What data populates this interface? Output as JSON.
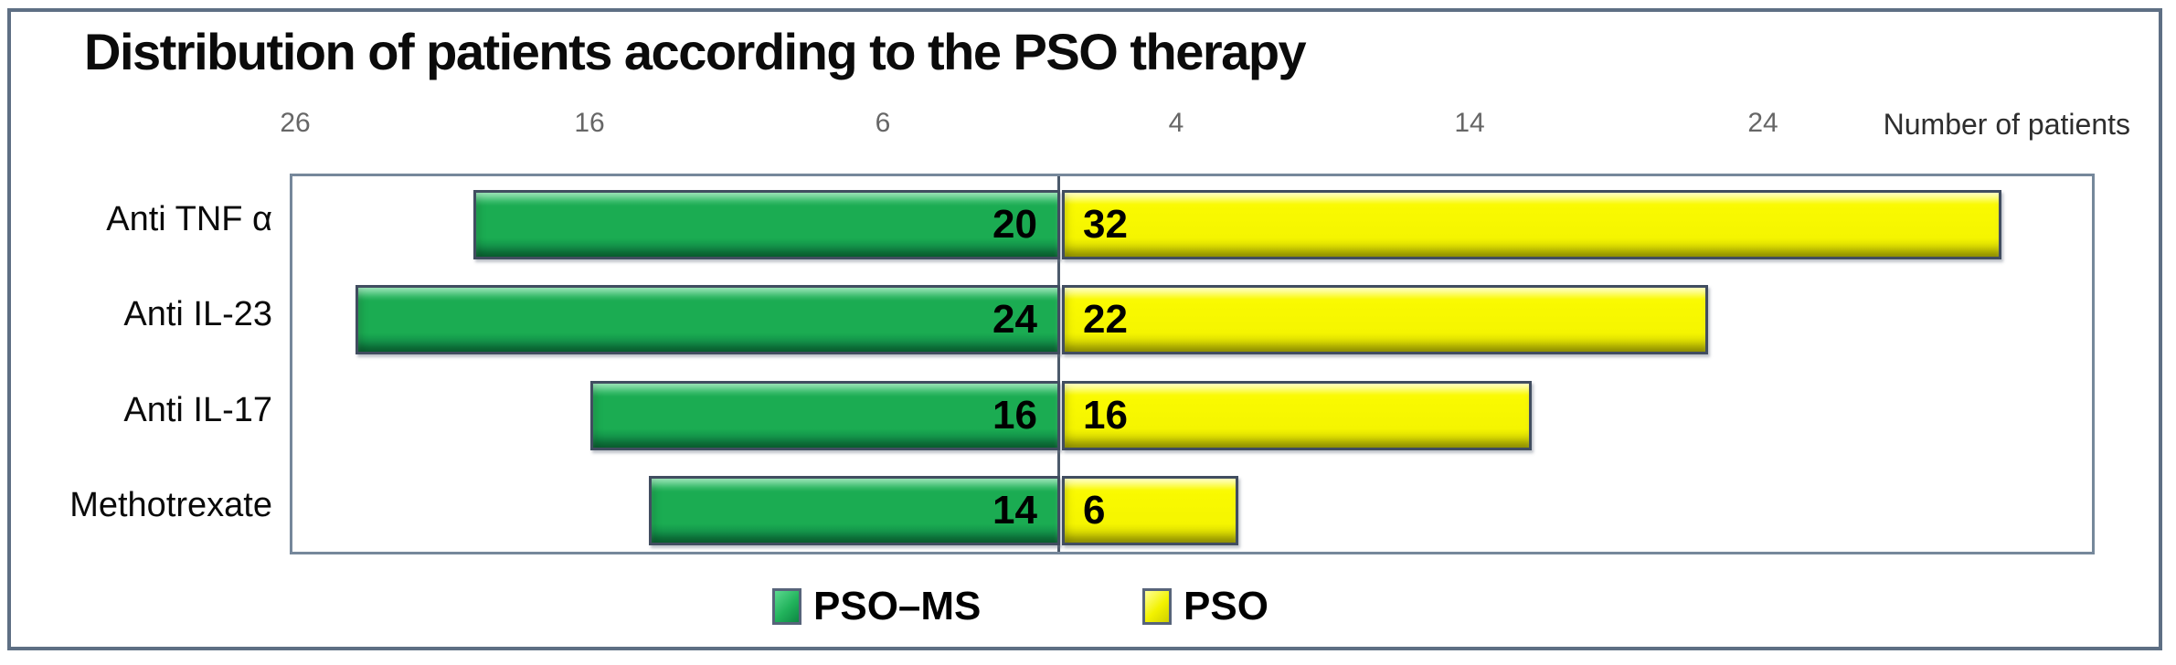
{
  "chart_data": {
    "type": "bar",
    "variant": "diverging-horizontal",
    "title": "Distribution of patients according to the PSO therapy",
    "xlabel": "Number of patients",
    "categories": [
      "Anti TNF α",
      "Anti IL-23",
      "Anti IL-17",
      "Methotrexate"
    ],
    "series": [
      {
        "name": "PSO–MS",
        "color": "#1BAC52",
        "direction": "left",
        "values": [
          20,
          24,
          16,
          14
        ]
      },
      {
        "name": "PSO",
        "color": "#F5F500",
        "direction": "right",
        "values": [
          32,
          22,
          16,
          6
        ]
      }
    ],
    "x_ticks": [
      {
        "value": -26,
        "label": "26"
      },
      {
        "value": -16,
        "label": "16"
      },
      {
        "value": -6,
        "label": "6"
      },
      {
        "value": 4,
        "label": "4"
      },
      {
        "value": 14,
        "label": "14"
      },
      {
        "value": 24,
        "label": "24"
      }
    ],
    "axis_range": [
      -26.2,
      35.3
    ],
    "zero_line": true,
    "grid": false,
    "legend_position": "bottom"
  },
  "legend": {
    "items": [
      {
        "label": "PSO–MS",
        "swatch": "green-3d-icon"
      },
      {
        "label": "PSO",
        "swatch": "yellow-3d-icon"
      }
    ]
  },
  "colors": {
    "green_bar": "#1BAC52",
    "yellow_bar": "#F5F500",
    "bar_outline": "#414D60",
    "outer_frame": "#5E6F84",
    "plot_border": "#76889B",
    "zero_line": "#4C5A6B",
    "tick_text": "#666666",
    "axis_label_text": "#2E2E2E",
    "title_text": "#0B0B0B"
  }
}
